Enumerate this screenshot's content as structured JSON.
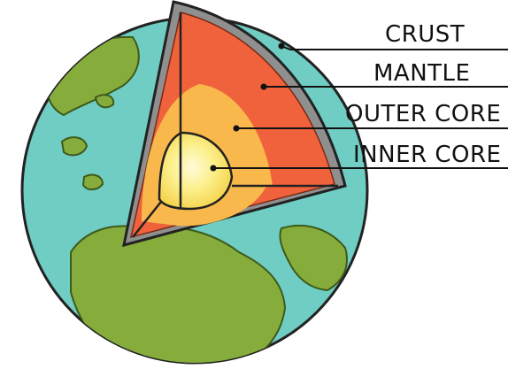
{
  "labels": {
    "crust": "CRUST",
    "mantle": "MANTLE",
    "outer_core": "OUTER CORE",
    "inner_core": "INNER CORE"
  },
  "colors": {
    "ocean": "#6fcdc4",
    "land": "#86ad3c",
    "crust": "#8f8f8f",
    "mantle": "#f0623c",
    "outer_core": "#f9b84c",
    "inner_core": "#fbe87a",
    "outline": "#222222"
  }
}
